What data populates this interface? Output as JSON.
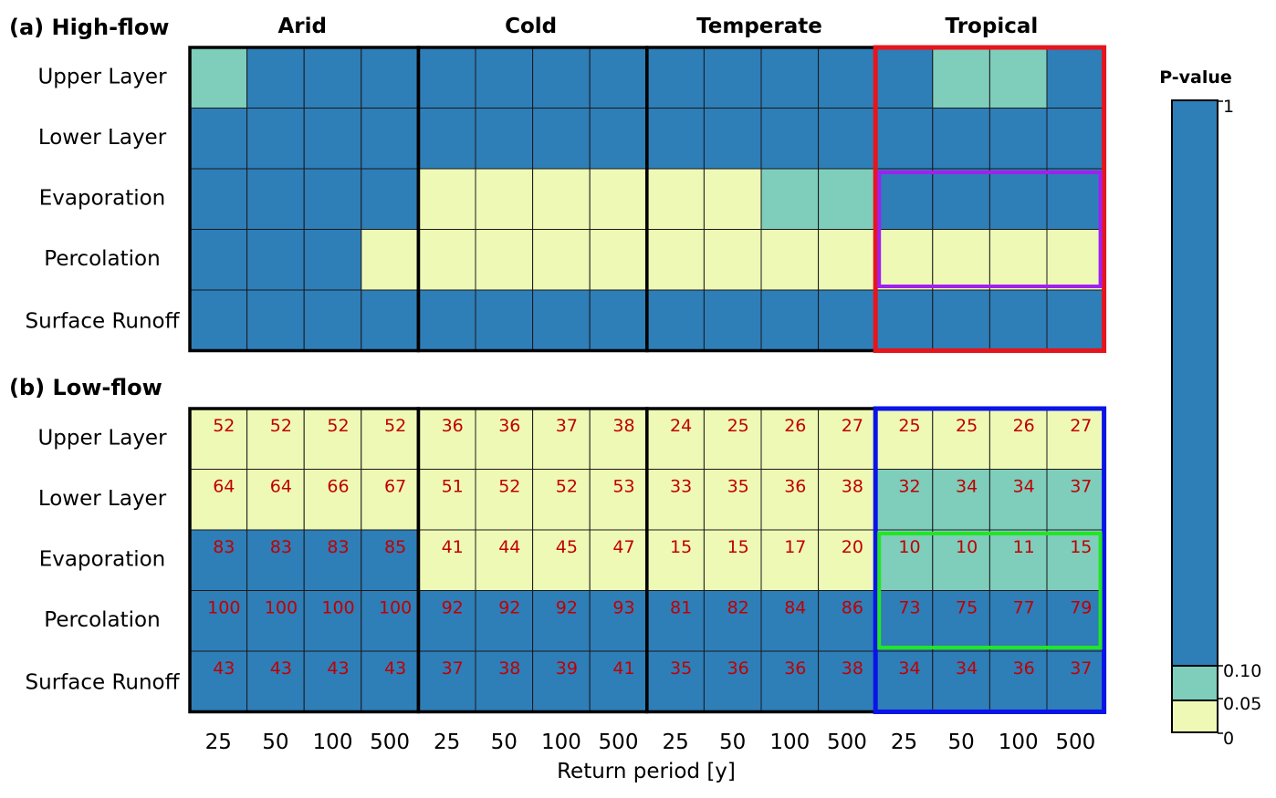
{
  "chart_data": {
    "type": "heatmap",
    "xlabel": "Return period [y]",
    "return_periods": [
      "25",
      "50",
      "100",
      "500"
    ],
    "climates": [
      "Arid",
      "Cold",
      "Temperate",
      "Tropical"
    ],
    "rows": [
      "Upper Layer",
      "Lower Layer",
      "Evaporation",
      "Percolation",
      "Surface Runoff"
    ],
    "colors": {
      "high": "#2e7eb8",
      "mid": "#7fcdbb",
      "low": "#eff9b6"
    },
    "colorbar": {
      "title": "P-value",
      "ticks": [
        "1",
        "0.10",
        "0.05",
        "0"
      ]
    },
    "panels": [
      {
        "title": "(a) High-flow",
        "categories": [
          [
            "mid",
            "high",
            "high",
            "high",
            "high",
            "high",
            "high",
            "high",
            "high",
            "high",
            "high",
            "high",
            "high",
            "mid",
            "mid",
            "high"
          ],
          [
            "high",
            "high",
            "high",
            "high",
            "high",
            "high",
            "high",
            "high",
            "high",
            "high",
            "high",
            "high",
            "high",
            "high",
            "high",
            "high"
          ],
          [
            "high",
            "high",
            "high",
            "high",
            "low",
            "low",
            "low",
            "low",
            "low",
            "low",
            "mid",
            "mid",
            "high",
            "high",
            "high",
            "high"
          ],
          [
            "high",
            "high",
            "high",
            "low",
            "low",
            "low",
            "low",
            "low",
            "low",
            "low",
            "low",
            "low",
            "low",
            "low",
            "low",
            "low"
          ],
          [
            "high",
            "high",
            "high",
            "high",
            "high",
            "high",
            "high",
            "high",
            "high",
            "high",
            "high",
            "high",
            "high",
            "high",
            "high",
            "high"
          ]
        ],
        "values": null,
        "highlights": [
          {
            "color": "#e8141c",
            "col_start": 12,
            "col_end": 15,
            "row_start": 0,
            "row_end": 4
          },
          {
            "color": "#a020f0",
            "col_start": 12,
            "col_end": 15,
            "row_start": 2,
            "row_end": 3
          }
        ]
      },
      {
        "title": "(b) Low-flow",
        "categories": [
          [
            "low",
            "low",
            "low",
            "low",
            "low",
            "low",
            "low",
            "low",
            "low",
            "low",
            "low",
            "low",
            "low",
            "low",
            "low",
            "low"
          ],
          [
            "low",
            "low",
            "low",
            "low",
            "low",
            "low",
            "low",
            "low",
            "low",
            "low",
            "low",
            "low",
            "mid",
            "mid",
            "mid",
            "mid"
          ],
          [
            "high",
            "high",
            "high",
            "high",
            "low",
            "low",
            "low",
            "low",
            "low",
            "low",
            "low",
            "low",
            "mid",
            "mid",
            "mid",
            "mid"
          ],
          [
            "high",
            "high",
            "high",
            "high",
            "high",
            "high",
            "high",
            "high",
            "high",
            "high",
            "high",
            "high",
            "high",
            "high",
            "high",
            "high"
          ],
          [
            "high",
            "high",
            "high",
            "high",
            "high",
            "high",
            "high",
            "high",
            "high",
            "high",
            "high",
            "high",
            "high",
            "high",
            "high",
            "high"
          ]
        ],
        "values": [
          [
            "52",
            "52",
            "52",
            "52",
            "36",
            "36",
            "37",
            "38",
            "24",
            "25",
            "26",
            "27",
            "25",
            "25",
            "26",
            "27"
          ],
          [
            "64",
            "64",
            "66",
            "67",
            "51",
            "52",
            "52",
            "53",
            "33",
            "35",
            "36",
            "38",
            "32",
            "34",
            "34",
            "37"
          ],
          [
            "83",
            "83",
            "83",
            "85",
            "41",
            "44",
            "45",
            "47",
            "15",
            "15",
            "17",
            "20",
            "10",
            "10",
            "11",
            "15"
          ],
          [
            "100",
            "100",
            "100",
            "100",
            "92",
            "92",
            "92",
            "93",
            "81",
            "82",
            "84",
            "86",
            "73",
            "75",
            "77",
            "79"
          ],
          [
            "43",
            "43",
            "43",
            "43",
            "37",
            "38",
            "39",
            "41",
            "35",
            "36",
            "36",
            "38",
            "34",
            "34",
            "36",
            "37"
          ]
        ],
        "highlights": [
          {
            "color": "#0a14e6",
            "col_start": 12,
            "col_end": 15,
            "row_start": 0,
            "row_end": 4
          },
          {
            "color": "#22e622",
            "col_start": 12,
            "col_end": 15,
            "row_start": 2,
            "row_end": 3
          }
        ]
      }
    ]
  }
}
